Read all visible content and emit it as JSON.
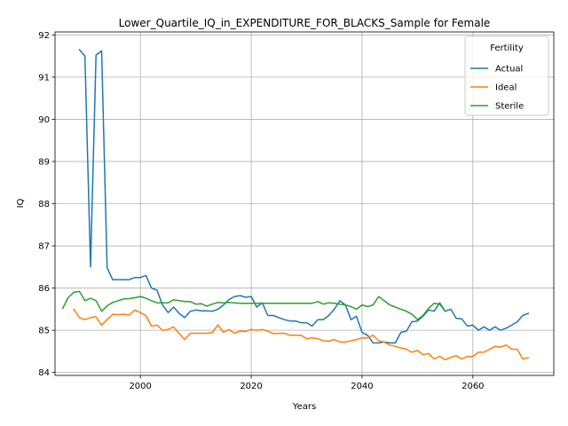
{
  "chart_data": {
    "type": "line",
    "title": "Lower_Quartile_IQ_in_EXPENDITURE_FOR_BLACKS_Sample for Female",
    "xlabel": "Years",
    "ylabel": "IQ",
    "xlim": [
      1984.6,
      2074.6
    ],
    "ylim": [
      83.93,
      92.07
    ],
    "xticks": [
      2000,
      2020,
      2040,
      2060
    ],
    "yticks": [
      84,
      85,
      86,
      87,
      88,
      89,
      90,
      91,
      92
    ],
    "grid": true,
    "legend": {
      "title": "Fertility",
      "placement": "top-right"
    },
    "series": [
      {
        "name": "Actual",
        "color": "#1f77b4",
        "x": [
          1989,
          1990,
          1991,
          1992,
          1993,
          1994,
          1995,
          1996,
          1997,
          1998,
          1999,
          2000,
          2001,
          2002,
          2003,
          2004,
          2005,
          2006,
          2007,
          2008,
          2009,
          2010,
          2011,
          2012,
          2013,
          2014,
          2015,
          2016,
          2017,
          2018,
          2019,
          2020,
          2021,
          2022,
          2023,
          2024,
          2025,
          2026,
          2027,
          2028,
          2029,
          2030,
          2031,
          2032,
          2033,
          2034,
          2035,
          2036,
          2037,
          2038,
          2039,
          2040,
          2041,
          2042,
          2043,
          2044,
          2045,
          2046,
          2047,
          2048,
          2049,
          2050,
          2051,
          2052,
          2053,
          2054,
          2055,
          2056,
          2057,
          2058,
          2059,
          2060,
          2061,
          2062,
          2063,
          2064,
          2065,
          2066,
          2067,
          2068,
          2069,
          2070
        ],
        "values": [
          91.65,
          91.5,
          86.5,
          91.52,
          91.62,
          86.48,
          86.2,
          86.2,
          86.2,
          86.2,
          86.25,
          86.25,
          86.3,
          86.0,
          85.95,
          85.6,
          85.42,
          85.55,
          85.4,
          85.3,
          85.45,
          85.48,
          85.46,
          85.46,
          85.45,
          85.5,
          85.6,
          85.73,
          85.8,
          85.82,
          85.78,
          85.8,
          85.55,
          85.65,
          85.35,
          85.35,
          85.3,
          85.25,
          85.22,
          85.22,
          85.18,
          85.18,
          85.1,
          85.25,
          85.25,
          85.35,
          85.5,
          85.7,
          85.6,
          85.25,
          85.33,
          84.95,
          84.88,
          84.7,
          84.7,
          84.72,
          84.7,
          84.7,
          84.95,
          84.98,
          85.2,
          85.22,
          85.33,
          85.48,
          85.45,
          85.65,
          85.45,
          85.5,
          85.28,
          85.27,
          85.1,
          85.12,
          85.0,
          85.08,
          85.0,
          85.08,
          85.0,
          85.05,
          85.12,
          85.2,
          85.35,
          85.4
        ]
      },
      {
        "name": "Ideal",
        "color": "#ff7f0e",
        "x": [
          1988,
          1989,
          1990,
          1991,
          1992,
          1993,
          1994,
          1995,
          1996,
          1997,
          1998,
          1999,
          2000,
          2001,
          2002,
          2003,
          2004,
          2005,
          2006,
          2007,
          2008,
          2009,
          2010,
          2011,
          2012,
          2013,
          2014,
          2015,
          2016,
          2017,
          2018,
          2019,
          2020,
          2021,
          2022,
          2023,
          2024,
          2025,
          2026,
          2027,
          2028,
          2029,
          2030,
          2031,
          2032,
          2033,
          2034,
          2035,
          2036,
          2037,
          2038,
          2039,
          2040,
          2041,
          2042,
          2043,
          2044,
          2045,
          2046,
          2047,
          2048,
          2049,
          2050,
          2051,
          2052,
          2053,
          2054,
          2055,
          2056,
          2057,
          2058,
          2059,
          2060,
          2061,
          2062,
          2063,
          2064,
          2065,
          2066,
          2067,
          2068,
          2069,
          2070
        ],
        "values": [
          85.5,
          85.3,
          85.25,
          85.3,
          85.32,
          85.12,
          85.25,
          85.38,
          85.37,
          85.38,
          85.36,
          85.48,
          85.42,
          85.35,
          85.1,
          85.12,
          85.0,
          85.02,
          85.08,
          84.92,
          84.78,
          84.93,
          84.93,
          84.93,
          84.93,
          84.95,
          85.13,
          84.95,
          85.02,
          84.93,
          84.98,
          84.97,
          85.02,
          85.0,
          85.02,
          84.98,
          84.92,
          84.93,
          84.93,
          84.88,
          84.88,
          84.88,
          84.8,
          84.82,
          84.8,
          84.75,
          84.74,
          84.78,
          84.72,
          84.72,
          84.75,
          84.78,
          84.82,
          84.82,
          84.88,
          84.75,
          84.72,
          84.65,
          84.62,
          84.58,
          84.55,
          84.48,
          84.52,
          84.42,
          84.45,
          84.32,
          84.38,
          84.3,
          84.36,
          84.4,
          84.32,
          84.38,
          84.38,
          84.48,
          84.48,
          84.55,
          84.62,
          84.6,
          84.65,
          84.55,
          84.55,
          84.32,
          84.35
        ]
      },
      {
        "name": "Sterile",
        "color": "#2ca02c",
        "x": [
          1986,
          1987,
          1988,
          1989,
          1990,
          1991,
          1992,
          1993,
          1994,
          1995,
          1996,
          1997,
          1998,
          1999,
          2000,
          2001,
          2002,
          2003,
          2004,
          2005,
          2006,
          2007,
          2008,
          2009,
          2010,
          2011,
          2012,
          2013,
          2014,
          2015,
          2016,
          2017,
          2018,
          2019,
          2020,
          2021,
          2022,
          2023,
          2024,
          2025,
          2026,
          2027,
          2028,
          2029,
          2030,
          2031,
          2032,
          2033,
          2034,
          2035,
          2036,
          2037,
          2038,
          2039,
          2040,
          2041,
          2042,
          2043,
          2044,
          2045,
          2046,
          2047,
          2048,
          2049,
          2050,
          2051,
          2052,
          2053,
          2054,
          2055
        ],
        "values": [
          85.52,
          85.78,
          85.9,
          85.92,
          85.7,
          85.76,
          85.7,
          85.45,
          85.58,
          85.66,
          85.7,
          85.74,
          85.75,
          85.77,
          85.8,
          85.76,
          85.7,
          85.65,
          85.65,
          85.65,
          85.72,
          85.7,
          85.68,
          85.68,
          85.62,
          85.63,
          85.57,
          85.62,
          85.66,
          85.65,
          85.66,
          85.65,
          85.64,
          85.64,
          85.64,
          85.64,
          85.64,
          85.64,
          85.64,
          85.64,
          85.64,
          85.64,
          85.64,
          85.64,
          85.64,
          85.64,
          85.68,
          85.62,
          85.65,
          85.64,
          85.62,
          85.6,
          85.56,
          85.5,
          85.6,
          85.56,
          85.6,
          85.8,
          85.7,
          85.6,
          85.55,
          85.5,
          85.45,
          85.38,
          85.25,
          85.35,
          85.52,
          85.64,
          85.62,
          85.45
        ]
      }
    ]
  }
}
